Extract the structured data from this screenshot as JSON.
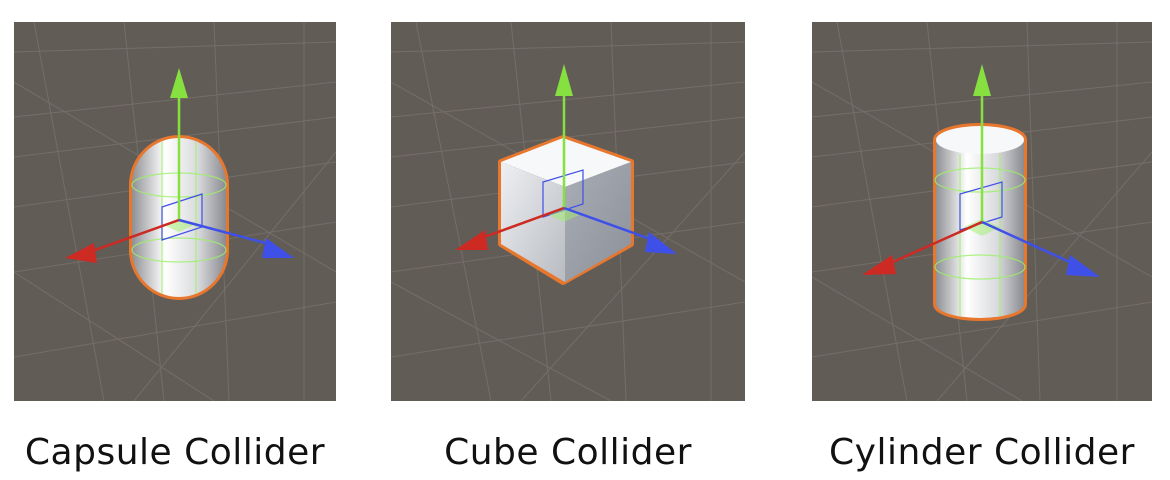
{
  "colors": {
    "background": "#625c57",
    "grid": "#7c7672",
    "selection_outline": "#e8772e",
    "axis_x": "#cc2a22",
    "axis_y": "#86e040",
    "axis_z": "#3f50e8",
    "collider_wire": "#9ef06a"
  },
  "panels": [
    {
      "id": "capsule",
      "shape": "capsule",
      "caption": "Capsule Collider"
    },
    {
      "id": "cube",
      "shape": "cube",
      "caption": "Cube Collider"
    },
    {
      "id": "cylinder",
      "shape": "cylinder",
      "caption": "Cylinder Collider"
    }
  ]
}
